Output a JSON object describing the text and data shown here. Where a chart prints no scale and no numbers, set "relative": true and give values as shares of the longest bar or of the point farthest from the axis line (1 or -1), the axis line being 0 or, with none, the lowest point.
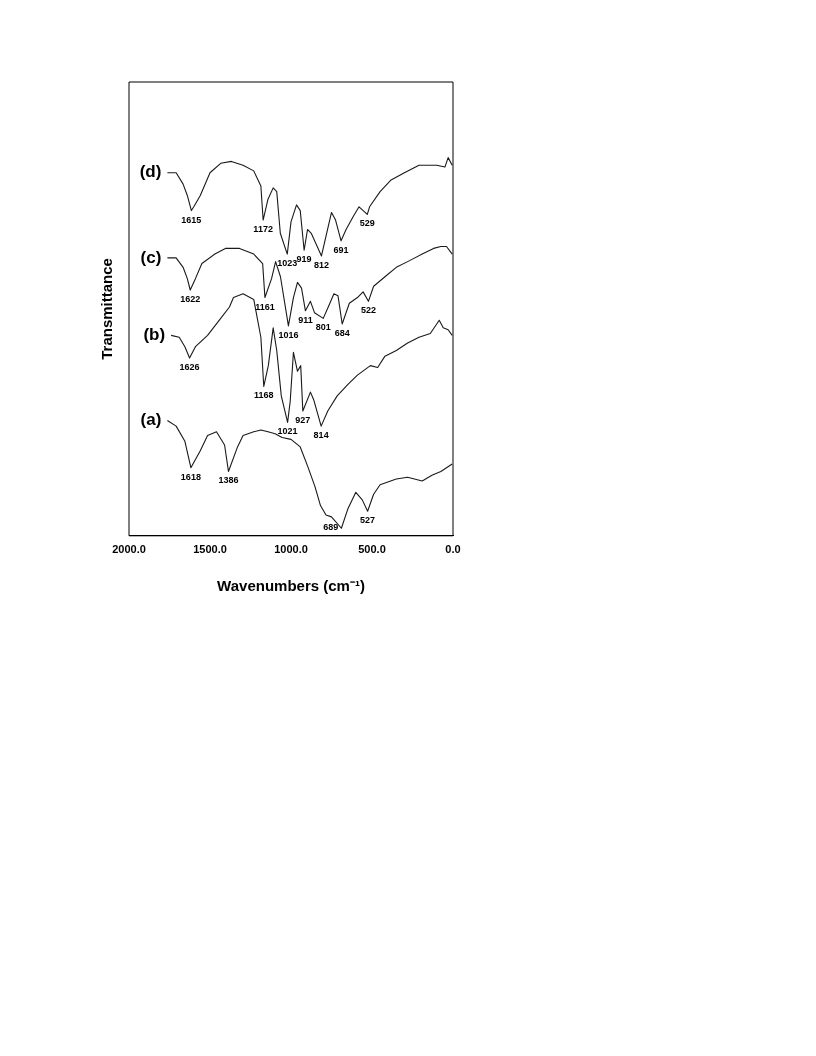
{
  "chart_data": {
    "type": "line",
    "relative": true,
    "xlabel": "Wavenumbers (cm⁻¹)",
    "ylabel": "Transmittance",
    "xlim": [
      2000,
      0
    ],
    "xticks": [
      {
        "value": 2000,
        "label": "2000.0"
      },
      {
        "value": 1500,
        "label": "1500.0"
      },
      {
        "value": 1000,
        "label": "1000.0"
      },
      {
        "value": 500,
        "label": "500.0"
      },
      {
        "value": 0,
        "label": "0.0"
      }
    ],
    "legend": false,
    "grid": false,
    "marker": "none",
    "line_style": "solid",
    "series": [
      {
        "name": "(d)",
        "color": "#1a1a1a",
        "x": [
          1763,
          1709,
          1666,
          1640,
          1615,
          1600,
          1560,
          1500,
          1434,
          1368,
          1296,
          1230,
          1186,
          1172,
          1142,
          1110,
          1088,
          1066,
          1023,
          1000,
          966,
          943,
          919,
          898,
          875,
          812,
          780,
          750,
          725,
          691,
          660,
          615,
          580,
          529,
          515,
          450,
          385,
          300,
          210,
          100,
          50,
          30,
          5
        ],
        "values": [
          0.96,
          0.96,
          0.93,
          0.9,
          0.86,
          0.87,
          0.9,
          0.96,
          0.985,
          0.99,
          0.98,
          0.965,
          0.925,
          0.835,
          0.89,
          0.92,
          0.91,
          0.8,
          0.745,
          0.83,
          0.875,
          0.86,
          0.755,
          0.81,
          0.8,
          0.74,
          0.8,
          0.855,
          0.835,
          0.78,
          0.81,
          0.845,
          0.87,
          0.85,
          0.87,
          0.91,
          0.94,
          0.96,
          0.98,
          0.98,
          0.975,
          1.0,
          0.98
        ]
      },
      {
        "name": "(c)",
        "color": "#1a1a1a",
        "x": [
          1763,
          1709,
          1666,
          1640,
          1622,
          1590,
          1550,
          1470,
          1405,
          1318,
          1230,
          1175,
          1161,
          1120,
          1095,
          1065,
          1016,
          985,
          960,
          935,
          911,
          880,
          855,
          801,
          770,
          735,
          710,
          684,
          640,
          590,
          555,
          522,
          490,
          420,
          350,
          280,
          190,
          120,
          75,
          40,
          5
        ],
        "values": [
          0.735,
          0.735,
          0.71,
          0.68,
          0.65,
          0.68,
          0.72,
          0.745,
          0.76,
          0.76,
          0.745,
          0.72,
          0.63,
          0.68,
          0.725,
          0.685,
          0.555,
          0.63,
          0.67,
          0.655,
          0.595,
          0.62,
          0.59,
          0.575,
          0.605,
          0.64,
          0.635,
          0.56,
          0.615,
          0.63,
          0.645,
          0.62,
          0.66,
          0.685,
          0.71,
          0.725,
          0.745,
          0.76,
          0.765,
          0.765,
          0.745
        ]
      },
      {
        "name": "(b)",
        "color": "#1a1a1a",
        "x": [
          1740,
          1690,
          1655,
          1626,
          1590,
          1515,
          1434,
          1380,
          1355,
          1296,
          1230,
          1186,
          1168,
          1140,
          1110,
          1088,
          1060,
          1021,
          1005,
          985,
          960,
          940,
          927,
          880,
          860,
          814,
          773,
          715,
          650,
          590,
          510,
          465,
          420,
          350,
          280,
          210,
          140,
          85,
          60,
          30,
          5
        ],
        "values": [
          0.53,
          0.525,
          0.5,
          0.47,
          0.5,
          0.53,
          0.575,
          0.605,
          0.63,
          0.64,
          0.625,
          0.525,
          0.395,
          0.45,
          0.55,
          0.49,
          0.37,
          0.3,
          0.355,
          0.485,
          0.435,
          0.45,
          0.33,
          0.38,
          0.36,
          0.29,
          0.33,
          0.37,
          0.4,
          0.425,
          0.45,
          0.445,
          0.475,
          0.49,
          0.51,
          0.525,
          0.535,
          0.57,
          0.55,
          0.545,
          0.53
        ]
      },
      {
        "name": "(a)",
        "color": "#1a1a1a",
        "x": [
          1763,
          1709,
          1655,
          1618,
          1560,
          1515,
          1460,
          1410,
          1386,
          1330,
          1296,
          1230,
          1186,
          1142,
          1098,
          1055,
          1000,
          943,
          898,
          852,
          818,
          784,
          750,
          689,
          650,
          600,
          560,
          527,
          490,
          450,
          350,
          280,
          190,
          130,
          75,
          5
        ],
        "values": [
          0.305,
          0.29,
          0.25,
          0.18,
          0.225,
          0.265,
          0.275,
          0.24,
          0.17,
          0.235,
          0.265,
          0.275,
          0.28,
          0.275,
          0.27,
          0.26,
          0.255,
          0.235,
          0.185,
          0.13,
          0.08,
          0.055,
          0.05,
          0.02,
          0.07,
          0.115,
          0.095,
          0.065,
          0.11,
          0.135,
          0.15,
          0.155,
          0.145,
          0.16,
          0.17,
          0.19
        ]
      }
    ],
    "annotations": [
      {
        "text": "1615",
        "x": 1615,
        "y": 0.86
      },
      {
        "text": "1172",
        "x": 1172,
        "y": 0.835
      },
      {
        "text": "1023",
        "x": 1023,
        "y": 0.745
      },
      {
        "text": "919",
        "x": 919,
        "y": 0.755
      },
      {
        "text": "812",
        "x": 812,
        "y": 0.74
      },
      {
        "text": "691",
        "x": 691,
        "y": 0.78
      },
      {
        "text": "529",
        "x": 529,
        "y": 0.85
      },
      {
        "text": "1622",
        "x": 1622,
        "y": 0.65
      },
      {
        "text": "1161",
        "x": 1161,
        "y": 0.63
      },
      {
        "text": "1016",
        "x": 1016,
        "y": 0.555
      },
      {
        "text": "911",
        "x": 911,
        "y": 0.595
      },
      {
        "text": "801",
        "x": 801,
        "y": 0.575
      },
      {
        "text": "684",
        "x": 684,
        "y": 0.56
      },
      {
        "text": "522",
        "x": 522,
        "y": 0.62
      },
      {
        "text": "1626",
        "x": 1626,
        "y": 0.47
      },
      {
        "text": "1168",
        "x": 1168,
        "y": 0.395
      },
      {
        "text": "1021",
        "x": 1021,
        "y": 0.3
      },
      {
        "text": "927",
        "x": 927,
        "y": 0.33
      },
      {
        "text": "814",
        "x": 814,
        "y": 0.29
      },
      {
        "text": "1618",
        "x": 1618,
        "y": 0.18
      },
      {
        "text": "1386",
        "x": 1386,
        "y": 0.17
      },
      {
        "text": "689",
        "x": 689,
        "y": 0.02
      },
      {
        "text": "527",
        "x": 527,
        "y": 0.065
      }
    ]
  }
}
